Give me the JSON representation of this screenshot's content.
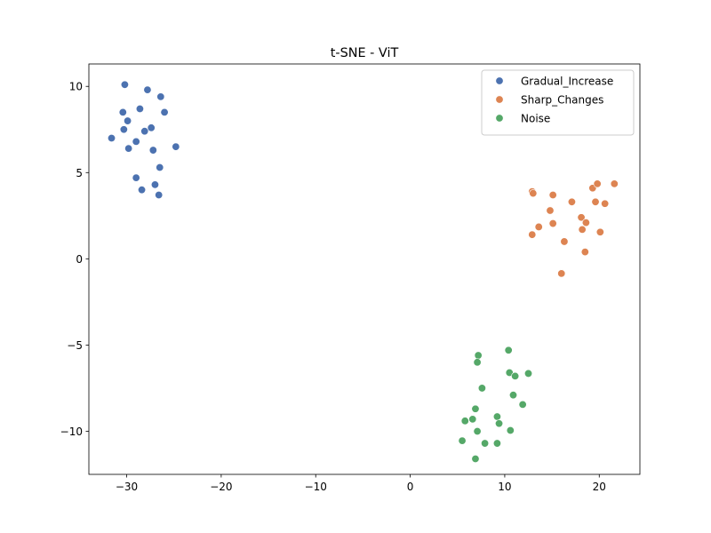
{
  "chart_data": {
    "type": "scatter",
    "title": "t-SNE - ViT",
    "xlabel": "",
    "ylabel": "",
    "xlim": [
      -34,
      24.3
    ],
    "ylim": [
      -12.5,
      11.3
    ],
    "xticks": [
      -30,
      -20,
      -10,
      0,
      10,
      20
    ],
    "yticks": [
      -10,
      -5,
      0,
      5,
      10
    ],
    "xtick_labels": [
      "−30",
      "−20",
      "−10",
      "0",
      "10",
      "20"
    ],
    "ytick_labels": [
      "−10",
      "−5",
      "0",
      "5",
      "10"
    ],
    "grid": false,
    "legend_position": "upper right",
    "series": [
      {
        "name": "Gradual_Increase",
        "color": "#4c72b0",
        "points": [
          [
            -30.2,
            10.1
          ],
          [
            -27.8,
            9.8
          ],
          [
            -26.4,
            9.4
          ],
          [
            -28.6,
            8.7
          ],
          [
            -26.0,
            8.5
          ],
          [
            -30.4,
            8.5
          ],
          [
            -29.9,
            8.0
          ],
          [
            -27.4,
            7.6
          ],
          [
            -30.3,
            7.5
          ],
          [
            -28.1,
            7.4
          ],
          [
            -31.6,
            7.0
          ],
          [
            -29.0,
            6.8
          ],
          [
            -29.8,
            6.4
          ],
          [
            -27.2,
            6.3
          ],
          [
            -24.8,
            6.5
          ],
          [
            -26.5,
            5.3
          ],
          [
            -29.0,
            4.7
          ],
          [
            -27.0,
            4.3
          ],
          [
            -28.4,
            4.0
          ],
          [
            -26.6,
            3.7
          ]
        ]
      },
      {
        "name": "Sharp_Changes",
        "color": "#dd8452",
        "points": [
          [
            12.9,
            3.9
          ],
          [
            13.0,
            3.8
          ],
          [
            15.1,
            3.7
          ],
          [
            17.1,
            3.3
          ],
          [
            19.3,
            4.1
          ],
          [
            19.8,
            4.35
          ],
          [
            21.6,
            4.35
          ],
          [
            19.6,
            3.3
          ],
          [
            20.6,
            3.2
          ],
          [
            14.8,
            2.8
          ],
          [
            18.1,
            2.4
          ],
          [
            18.6,
            2.1
          ],
          [
            15.1,
            2.05
          ],
          [
            13.6,
            1.85
          ],
          [
            18.2,
            1.7
          ],
          [
            20.1,
            1.55
          ],
          [
            12.9,
            1.4
          ],
          [
            16.3,
            1.0
          ],
          [
            18.5,
            0.4
          ],
          [
            16.0,
            -0.85
          ]
        ]
      },
      {
        "name": "Noise",
        "color": "#55a868",
        "points": [
          [
            10.4,
            -5.3
          ],
          [
            7.2,
            -5.6
          ],
          [
            7.1,
            -6.0
          ],
          [
            10.5,
            -6.6
          ],
          [
            12.5,
            -6.65
          ],
          [
            11.1,
            -6.8
          ],
          [
            7.6,
            -7.5
          ],
          [
            10.9,
            -7.9
          ],
          [
            11.9,
            -8.45
          ],
          [
            6.9,
            -8.7
          ],
          [
            9.2,
            -9.15
          ],
          [
            6.6,
            -9.3
          ],
          [
            5.8,
            -9.4
          ],
          [
            9.4,
            -9.55
          ],
          [
            7.1,
            -10.0
          ],
          [
            10.6,
            -9.95
          ],
          [
            5.5,
            -10.55
          ],
          [
            7.9,
            -10.7
          ],
          [
            9.2,
            -10.7
          ],
          [
            6.9,
            -11.6
          ]
        ]
      }
    ]
  }
}
